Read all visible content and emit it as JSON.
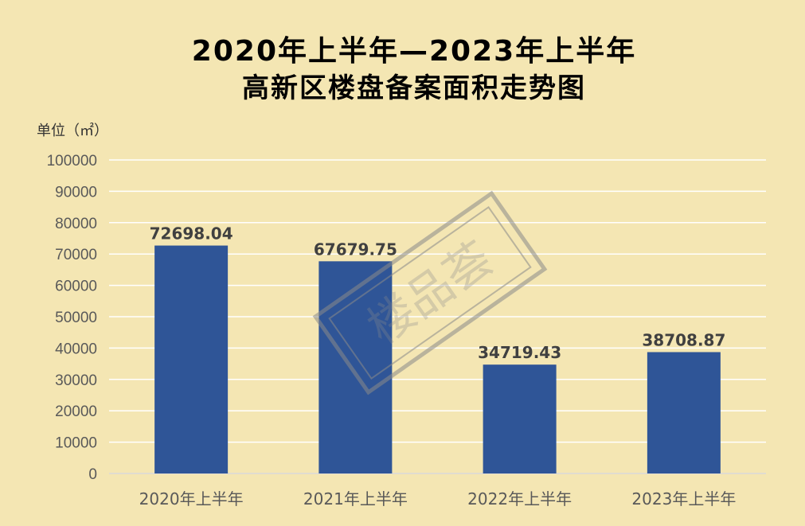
{
  "chart_data": {
    "type": "bar",
    "title_line1": "2020年上半年—2023年上半年",
    "title_line2": "高新区楼盘备案面积走势图",
    "unit_label": "单位（㎡）",
    "categories": [
      "2020年上半年",
      "2021年上半年",
      "2022年上半年",
      "2023年上半年"
    ],
    "values": [
      72698.04,
      67679.75,
      34719.43,
      38708.87
    ],
    "data_labels": [
      "72698.04",
      "67679.75",
      "34719.43",
      "38708.87"
    ],
    "y_ticks": [
      0,
      10000,
      20000,
      30000,
      40000,
      50000,
      60000,
      70000,
      80000,
      90000,
      100000
    ],
    "ylim": [
      0,
      100000
    ],
    "grid": true,
    "bar_color": "#2f5597",
    "background_color": "#f4e6b3"
  },
  "watermark": {
    "text": "楼品荟"
  }
}
